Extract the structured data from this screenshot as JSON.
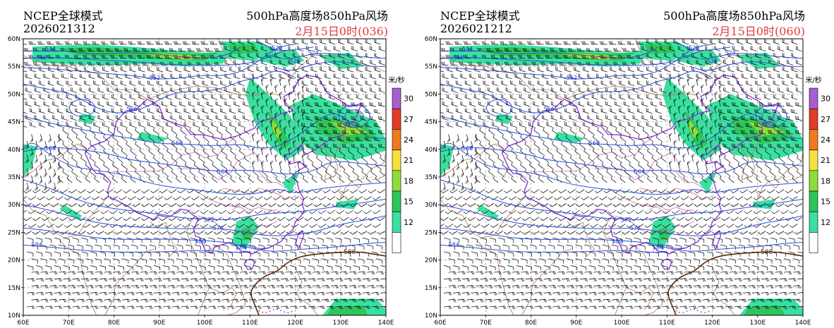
{
  "panels": [
    {
      "model": "NCEP全球模式",
      "run": "2026021312",
      "field": "500hPa高度场850hPa风场",
      "valid": "2月15日0时(036)"
    },
    {
      "model": "NCEP全球模式",
      "run": "2026021212",
      "field": "500hPa高度场850hPa风场",
      "valid": "2月15日0时(060)"
    }
  ],
  "map": {
    "lat_labels": [
      "60N",
      "55N",
      "50N",
      "45N",
      "40N",
      "35N",
      "30N",
      "25N",
      "20N",
      "15N",
      "10N"
    ],
    "lon_labels": [
      "60E",
      "70E",
      "80E",
      "90E",
      "100E",
      "110E",
      "120E",
      "130E",
      "140E"
    ],
    "contour_labels": [
      "544",
      "548",
      "552",
      "520",
      "524",
      "528",
      "556",
      "560",
      "564",
      "568",
      "572",
      "576",
      "580",
      "584",
      "588"
    ]
  },
  "colorbar": {
    "unit": "米/秒",
    "levels": [
      "30",
      "27",
      "24",
      "21",
      "18",
      "15",
      "12"
    ],
    "colors": [
      "#a55fd2",
      "#e23b2a",
      "#f07a1e",
      "#f5e13a",
      "#8fdc3a",
      "#2ec65a",
      "#3ae0a0",
      "#ffffff"
    ]
  },
  "colors": {
    "height_contour": "#2a4fd8",
    "contour_588": "#5a2a0c",
    "china_border": "#8a2be2",
    "province_border": "#c0509a",
    "wind_barb": "#000000"
  }
}
